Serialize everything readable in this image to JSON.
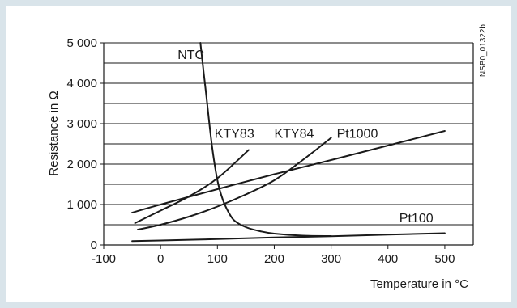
{
  "chart_data": {
    "type": "line",
    "title": "",
    "xlabel": "Temperature in °C",
    "ylabel": "Resistance in Ω",
    "figure_id": "NSB0_01322b",
    "xlim": [
      -100,
      550
    ],
    "ylim": [
      0,
      5000
    ],
    "x_ticks": [
      -100,
      0,
      100,
      200,
      300,
      400,
      500
    ],
    "x_tick_labels": [
      "-100",
      "0",
      "100",
      "200",
      "300",
      "400",
      "500"
    ],
    "y_ticks": [
      0,
      1000,
      2000,
      3000,
      4000,
      5000
    ],
    "y_tick_labels": [
      "0",
      "1 000",
      "2 000",
      "3 000",
      "4 000",
      "5 000"
    ],
    "grid": {
      "horizontal": true,
      "minor_step": 500,
      "vertical": false
    },
    "series": [
      {
        "name": "NTC",
        "x": [
          70,
          80,
          90,
          100,
          110,
          120,
          130,
          150,
          175,
          200,
          250,
          300
        ],
        "y": [
          5000,
          3750,
          2500,
          1600,
          1100,
          800,
          600,
          440,
          340,
          280,
          230,
          220
        ]
      },
      {
        "name": "KTY83",
        "x": [
          -45,
          0,
          50,
          100,
          155
        ],
        "y": [
          540,
          850,
          1200,
          1650,
          2350
        ]
      },
      {
        "name": "KTY84",
        "x": [
          -40,
          0,
          50,
          100,
          150,
          200,
          250,
          300
        ],
        "y": [
          380,
          500,
          700,
          950,
          1250,
          1600,
          2100,
          2650
        ]
      },
      {
        "name": "Pt1000",
        "x": [
          -50,
          0,
          100,
          200,
          300,
          400,
          500
        ],
        "y": [
          800,
          1000,
          1380,
          1750,
          2100,
          2460,
          2820
        ]
      },
      {
        "name": "Pt100",
        "x": [
          -50,
          0,
          100,
          200,
          300,
          400,
          500
        ],
        "y": [
          95,
          110,
          145,
          185,
          215,
          255,
          290
        ]
      }
    ],
    "labels": [
      {
        "text": "NTC",
        "x": 30,
        "y": 4600
      },
      {
        "text": "KTY83",
        "x": 95,
        "y": 2650
      },
      {
        "text": "KTY84",
        "x": 200,
        "y": 2650
      },
      {
        "text": "Pt1000",
        "x": 310,
        "y": 2650
      },
      {
        "text": "Pt100",
        "x": 420,
        "y": 560
      }
    ]
  }
}
